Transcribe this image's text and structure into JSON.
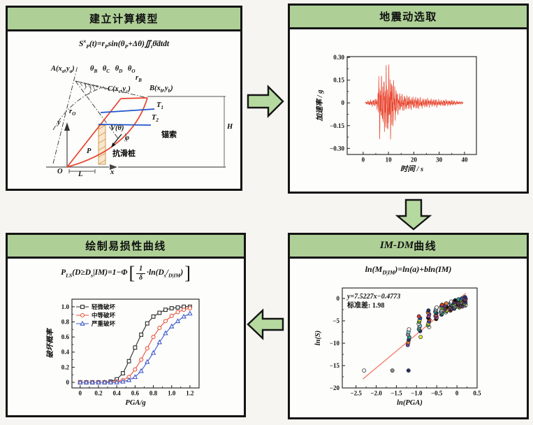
{
  "colors": {
    "header_bg": "#aed096",
    "arrow_fill": "#b6d9a0",
    "panel_border": "#141414",
    "slip_surface_red": "#e8432c",
    "anchor_cable_blue": "#2255cc"
  },
  "flow": {
    "panels": [
      {
        "id": "model",
        "title": "建立计算模型"
      },
      {
        "id": "ground-motion",
        "title": "地震动选取"
      },
      {
        "id": "im-dm",
        "title_latin": "IM-DM",
        "title_cjk": "曲线"
      },
      {
        "id": "fragility",
        "title": "绘制易损性曲线"
      }
    ]
  },
  "model": {
    "equation": "S^{x}_{P}(t)=r_{P}sin(θ_{P}+Δθ)∬_{t}θ̈dtdt",
    "labels": {
      "point_a": "A(x_{a},y_{a})",
      "thetas": "θ_{B} θ_{C} θ_{D} θ_{O}",
      "r_b": "r_{B}",
      "point_c": "C(x_{c},y_{c})",
      "point_b": "B(x_{b},y_{b})",
      "r_o": "r_{O}",
      "t1": "T_{1}",
      "t2": "T_{2}",
      "h": "H",
      "anchor_cable": "锚索",
      "v_theta": "V(θ)",
      "phi": "φ",
      "p": "P",
      "pile": "抗滑桩",
      "axis_y": "y",
      "origin": "O",
      "l": "L",
      "axis_x": "x"
    }
  },
  "im_dm": {
    "equation": "ln(M_{D|IM})=ln(a)+bln(IM)"
  },
  "fragility": {
    "eq_prefix": "P_{LS}(D≥D_{s}|IM)=1−Φ",
    "eq_open": "[",
    "eq_frac_num": "1",
    "eq_frac_den": "δ",
    "eq_suffix": "·ln(D_{s}/_{D|IM})",
    "eq_close": "]"
  },
  "chart_data": [
    {
      "id": "ground-motion-plot",
      "type": "waveform",
      "title": "",
      "xlabel": "时间 / s",
      "ylabel": "加速率 / g",
      "xlim": [
        -6.3,
        44.7
      ],
      "ylim": [
        -0.34,
        0.305
      ],
      "xtick_vals": [
        0,
        10,
        20,
        30,
        40
      ],
      "xtick_labels": [
        "0",
        "10",
        "20",
        "30",
        "40"
      ],
      "ytick_vals": [
        0.3,
        0.15,
        0,
        -0.15,
        -0.3
      ],
      "ytick_labels": [
        "0.30",
        "0.15",
        "0",
        "−0.15",
        "−0.30"
      ],
      "color": "#e8432c",
      "envelope": [
        [
          0.8,
          0.005
        ],
        [
          2,
          0.015
        ],
        [
          3,
          0.02
        ],
        [
          4,
          0.025
        ],
        [
          5,
          0.03
        ],
        [
          5.8,
          0.05
        ],
        [
          6.2,
          0.22
        ],
        [
          6.6,
          0.24
        ],
        [
          7,
          0.19
        ],
        [
          7.5,
          0.16
        ],
        [
          8,
          0.18
        ],
        [
          8.6,
          0.22
        ],
        [
          9,
          0.26
        ],
        [
          9.5,
          0.2
        ],
        [
          10,
          0.24
        ],
        [
          10.5,
          0.28
        ],
        [
          11,
          0.22
        ],
        [
          11.5,
          0.19
        ],
        [
          12,
          0.16
        ],
        [
          12.5,
          0.13
        ],
        [
          13,
          0.1
        ],
        [
          14,
          0.07
        ],
        [
          15,
          0.06
        ],
        [
          16,
          0.055
        ],
        [
          17,
          0.05
        ],
        [
          18,
          0.05
        ],
        [
          19,
          0.045
        ],
        [
          20,
          0.04
        ],
        [
          21,
          0.045
        ],
        [
          22,
          0.04
        ],
        [
          23,
          0.035
        ],
        [
          24,
          0.03
        ],
        [
          25,
          0.035
        ],
        [
          26,
          0.03
        ],
        [
          27,
          0.028
        ],
        [
          28,
          0.025
        ],
        [
          29,
          0.03
        ],
        [
          30,
          0.022
        ],
        [
          31,
          0.02
        ],
        [
          32,
          0.025
        ],
        [
          33,
          0.02
        ],
        [
          34,
          0.018
        ],
        [
          35,
          0.02
        ],
        [
          36,
          0.015
        ],
        [
          37,
          0.012
        ],
        [
          38,
          0.01
        ],
        [
          39,
          0.008
        ],
        [
          39.5,
          0.004
        ]
      ]
    },
    {
      "id": "im-dm-plot",
      "type": "scatter",
      "title": "",
      "xlabel": "ln(PGA)",
      "ylabel": "ln(S)",
      "xlim": [
        -2.84,
        0.5
      ],
      "ylim": [
        -20,
        2.34
      ],
      "xtick_vals": [
        -2.5,
        -2.0,
        -1.5,
        -1.0,
        -0.5,
        0,
        0.5
      ],
      "xtick_labels": [
        "−2.5",
        "−2.0",
        "−1.5",
        "−1.0",
        "−0.5",
        "0",
        "0.5"
      ],
      "ytick_vals": [
        0,
        -5,
        -10,
        -15,
        -20
      ],
      "ytick_labels": [
        "0",
        "−5",
        "−10",
        "−15",
        "−20"
      ],
      "annotation": [
        "y=7.5227x−0.4773",
        "标准差: 1.98"
      ],
      "fit_line": {
        "slope": 7.5227,
        "intercept": -0.4773,
        "x_range": [
          -2.33,
          0.22
        ],
        "color": "#f4705a"
      },
      "palette": [
        "#7a3f9d",
        "#ece13e",
        "#1fa396",
        "#101010",
        "#f2f2f2",
        "#e07b35",
        "#2e4fc0",
        "#8f8f8f",
        "#c24795",
        "#63a839",
        "#27306e",
        "#cf3d33",
        "#83c7e0"
      ],
      "columns": [
        {
          "x": -1.2,
          "y_min": -10.4,
          "y_max": -6.9,
          "n": 7
        },
        {
          "x": -0.93,
          "y_min": -7.3,
          "y_max": -4.0,
          "n": 9
        },
        {
          "x": -0.7,
          "y_min": -6.4,
          "y_max": -2.7,
          "n": 10
        },
        {
          "x": -0.52,
          "y_min": -4.6,
          "y_max": -2.0,
          "n": 9
        },
        {
          "x": -0.38,
          "y_min": -3.6,
          "y_max": -1.4,
          "n": 9
        },
        {
          "x": -0.27,
          "y_min": -3.1,
          "y_max": -1.1,
          "n": 9
        },
        {
          "x": -0.15,
          "y_min": -2.7,
          "y_max": -0.7,
          "n": 10
        },
        {
          "x": -0.05,
          "y_min": -2.3,
          "y_max": -0.4,
          "n": 10
        },
        {
          "x": 0.04,
          "y_min": -2.0,
          "y_max": -0.2,
          "n": 10
        },
        {
          "x": 0.12,
          "y_min": -1.8,
          "y_max": 0.0,
          "n": 11
        },
        {
          "x": 0.2,
          "y_min": -1.6,
          "y_max": 0.3,
          "n": 11
        }
      ],
      "singles": [
        [
          -0.9,
          -8.6
        ],
        [
          -2.3,
          -16.1
        ],
        [
          -1.6,
          -16.1
        ],
        [
          -1.2,
          -16.1
        ]
      ]
    },
    {
      "id": "fragility-plot",
      "type": "line-multi",
      "title": "",
      "xlabel": "PGA/g",
      "ylabel": "破坏概率",
      "xlim": [
        -0.09,
        1.3
      ],
      "ylim": [
        -0.074,
        1.1
      ],
      "xtick_vals": [
        0,
        0.2,
        0.4,
        0.6,
        0.8,
        1.0,
        1.2
      ],
      "xtick_labels": [
        "0",
        "0.2",
        "0.4",
        "0.6",
        "0.8",
        "1.0",
        "1.2"
      ],
      "ytick_vals": [
        0,
        0.2,
        0.4,
        0.6,
        0.8,
        1.0
      ],
      "ytick_labels": [
        "0",
        "0.2",
        "0.4",
        "0.6",
        "0.8",
        "1.0"
      ],
      "legend_position": "top-left",
      "x": [
        0,
        0.067,
        0.133,
        0.2,
        0.267,
        0.333,
        0.4,
        0.467,
        0.533,
        0.6,
        0.667,
        0.733,
        0.8,
        0.867,
        0.933,
        1.0,
        1.067,
        1.133,
        1.2
      ],
      "series": [
        {
          "name": "轻微破坏",
          "color": "#2b2b2b",
          "marker": "square",
          "values": [
            0,
            0,
            0,
            0,
            0,
            0.01,
            0.04,
            0.12,
            0.28,
            0.46,
            0.63,
            0.78,
            0.87,
            0.92,
            0.96,
            0.98,
            0.99,
            1.0,
            1.0
          ]
        },
        {
          "name": "中等破坏",
          "color": "#e8503a",
          "marker": "circle",
          "values": [
            0,
            0,
            0,
            0,
            0,
            0,
            0.01,
            0.03,
            0.07,
            0.17,
            0.3,
            0.45,
            0.6,
            0.72,
            0.81,
            0.88,
            0.93,
            0.96,
            0.98
          ]
        },
        {
          "name": "严重破坏",
          "color": "#3f5bc9",
          "marker": "triangle",
          "values": [
            0,
            0,
            0,
            0,
            0,
            0,
            0,
            0.01,
            0.03,
            0.07,
            0.15,
            0.27,
            0.39,
            0.53,
            0.65,
            0.74,
            0.81,
            0.87,
            0.91
          ]
        }
      ]
    }
  ]
}
